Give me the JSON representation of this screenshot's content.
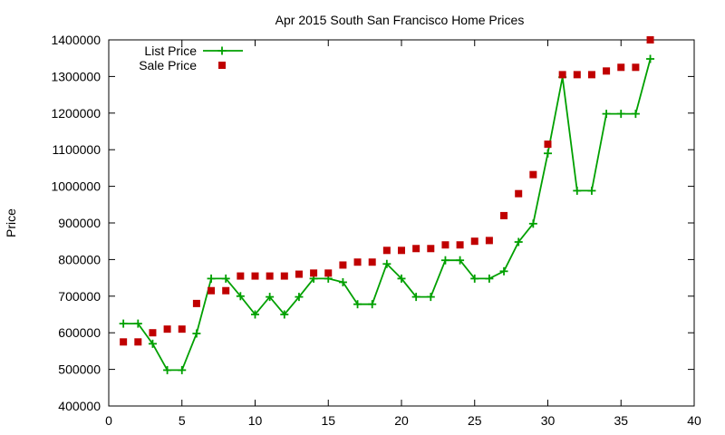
{
  "chart_data": {
    "type": "line",
    "title": "Apr 2015 South San Francisco Home Prices",
    "xlabel": "",
    "ylabel": "Price",
    "xlim": [
      0,
      40
    ],
    "ylim": [
      400000,
      1400000
    ],
    "xticks": [
      0,
      5,
      10,
      15,
      20,
      25,
      30,
      35,
      40
    ],
    "yticks": [
      400000,
      500000,
      600000,
      700000,
      800000,
      900000,
      1000000,
      1100000,
      1200000,
      1300000,
      1400000
    ],
    "grid": false,
    "legend": "top-left",
    "series": [
      {
        "name": "List Price",
        "style": "line-with-plus-markers",
        "color": "#00a000",
        "x": [
          1,
          2,
          3,
          4,
          5,
          6,
          7,
          8,
          9,
          10,
          11,
          12,
          13,
          14,
          15,
          16,
          17,
          18,
          19,
          20,
          21,
          22,
          23,
          24,
          25,
          26,
          27,
          28,
          29,
          30,
          31,
          32,
          33,
          34,
          35,
          36,
          37
        ],
        "y": [
          625000,
          625000,
          570000,
          498000,
          498000,
          598000,
          748000,
          748000,
          700000,
          650000,
          698000,
          650000,
          698000,
          748000,
          748000,
          738000,
          678000,
          678000,
          788000,
          748000,
          698000,
          698000,
          798000,
          798000,
          748000,
          748000,
          768000,
          848000,
          898000,
          1090000,
          1298000,
          988000,
          988000,
          1198000,
          1198000,
          1198000,
          1348000
        ]
      },
      {
        "name": "Sale Price",
        "style": "square-markers",
        "color": "#c00000",
        "x": [
          1,
          2,
          3,
          4,
          5,
          6,
          7,
          8,
          9,
          10,
          11,
          12,
          13,
          14,
          15,
          16,
          17,
          18,
          19,
          20,
          21,
          22,
          23,
          24,
          25,
          26,
          27,
          28,
          29,
          30,
          31,
          32,
          33,
          34,
          35,
          36,
          37
        ],
        "y": [
          575000,
          575000,
          600000,
          610000,
          610000,
          680000,
          715000,
          715000,
          755000,
          755000,
          755000,
          755000,
          760000,
          763000,
          763000,
          785000,
          793000,
          793000,
          825000,
          825000,
          830000,
          830000,
          840000,
          840000,
          850000,
          852000,
          920000,
          980000,
          1032000,
          1115000,
          1305000,
          1305000,
          1305000,
          1315000,
          1325000,
          1325000,
          1400000
        ]
      }
    ]
  }
}
